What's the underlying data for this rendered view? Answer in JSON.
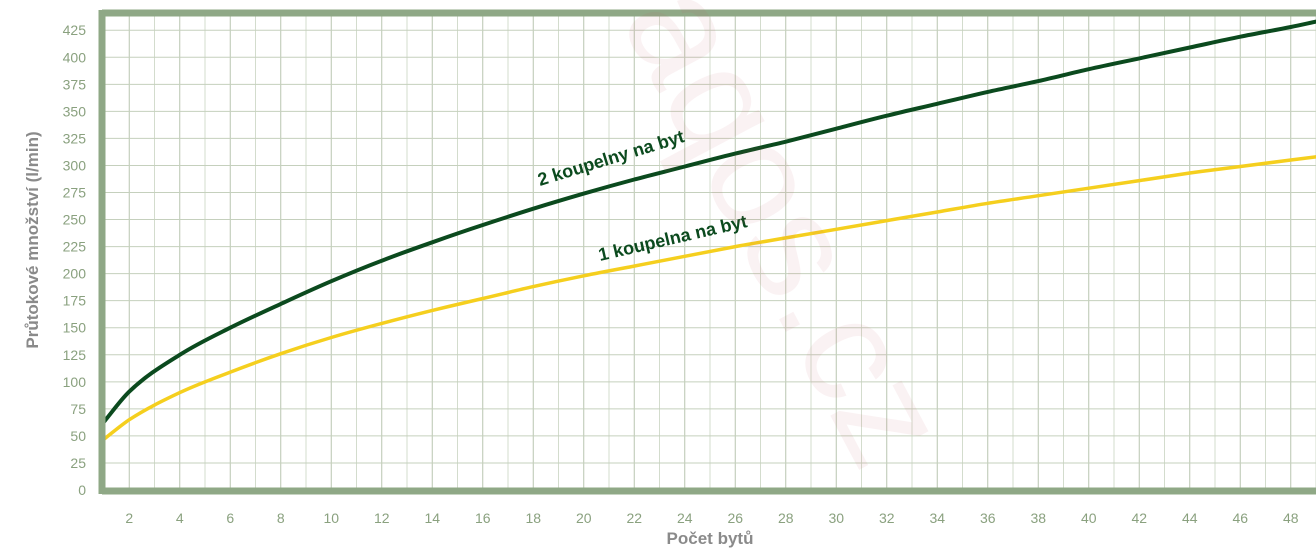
{
  "chart_data": {
    "type": "line",
    "xlabel": "Počet bytů",
    "ylabel": "Průtokové množství  (l/min)",
    "xlim": [
      1,
      49
    ],
    "ylim": [
      0,
      440
    ],
    "x_ticks": [
      2,
      4,
      6,
      8,
      10,
      12,
      14,
      16,
      18,
      20,
      22,
      24,
      26,
      28,
      30,
      32,
      34,
      36,
      38,
      40,
      42,
      44,
      46,
      48
    ],
    "y_ticks": [
      0,
      25,
      50,
      75,
      100,
      125,
      150,
      175,
      200,
      225,
      250,
      275,
      300,
      325,
      350,
      375,
      400,
      425
    ],
    "grid": true,
    "legend": "none",
    "series": [
      {
        "name": "2 koupelny na byt",
        "color": "#0b4a1e",
        "x": [
          1,
          2,
          4,
          6,
          8,
          10,
          12,
          14,
          16,
          18,
          20,
          22,
          24,
          26,
          28,
          30,
          32,
          34,
          36,
          38,
          40,
          42,
          44,
          46,
          48,
          49
        ],
        "y": [
          63,
          91,
          125,
          150,
          172,
          193,
          212,
          229,
          245,
          260,
          274,
          287,
          299,
          311,
          322,
          334,
          346,
          357,
          368,
          378,
          389,
          399,
          409,
          419,
          428,
          433
        ]
      },
      {
        "name": "1 koupelna na byt",
        "color": "#f5cf1e",
        "x": [
          1,
          2,
          4,
          6,
          8,
          10,
          12,
          14,
          16,
          18,
          20,
          22,
          24,
          26,
          28,
          30,
          32,
          34,
          36,
          38,
          40,
          42,
          44,
          46,
          48,
          49
        ],
        "y": [
          47,
          65,
          90,
          109,
          126,
          141,
          154,
          166,
          177,
          188,
          198,
          207,
          216,
          225,
          233,
          241,
          249,
          257,
          265,
          272,
          279,
          286,
          293,
          299,
          305,
          308
        ]
      }
    ]
  },
  "watermark": "aqos.cz"
}
